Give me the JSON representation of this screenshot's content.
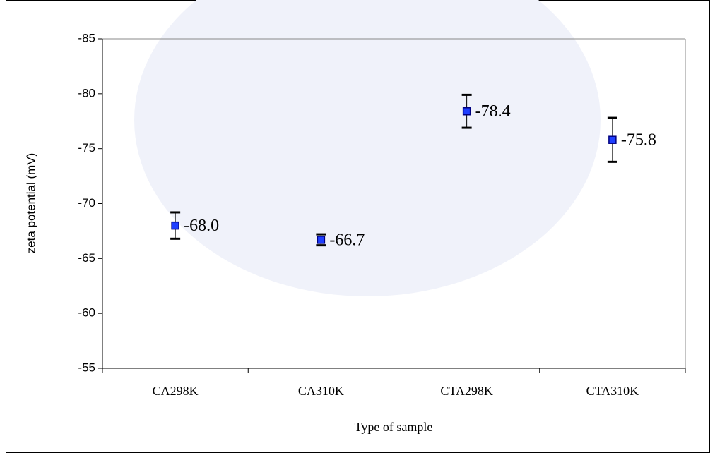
{
  "chart_data": {
    "type": "errorbar-scatter",
    "x_label": "Type of sample",
    "y_label": "zeta potential (mV)",
    "categories": [
      "CA298K",
      "CA310K",
      "CTA298K",
      "CTA310K"
    ],
    "values": [
      -68.0,
      -66.7,
      -78.4,
      -75.8
    ],
    "value_labels": [
      "-68.0",
      "-66.7",
      "-78.4",
      "-75.8"
    ],
    "errors": [
      1.2,
      0.5,
      1.5,
      2.0
    ],
    "color": "#1f3fff",
    "ylim": [
      -55,
      -85
    ],
    "yticks": [
      -55,
      -60,
      -65,
      -70,
      -75,
      -80,
      -85
    ]
  }
}
